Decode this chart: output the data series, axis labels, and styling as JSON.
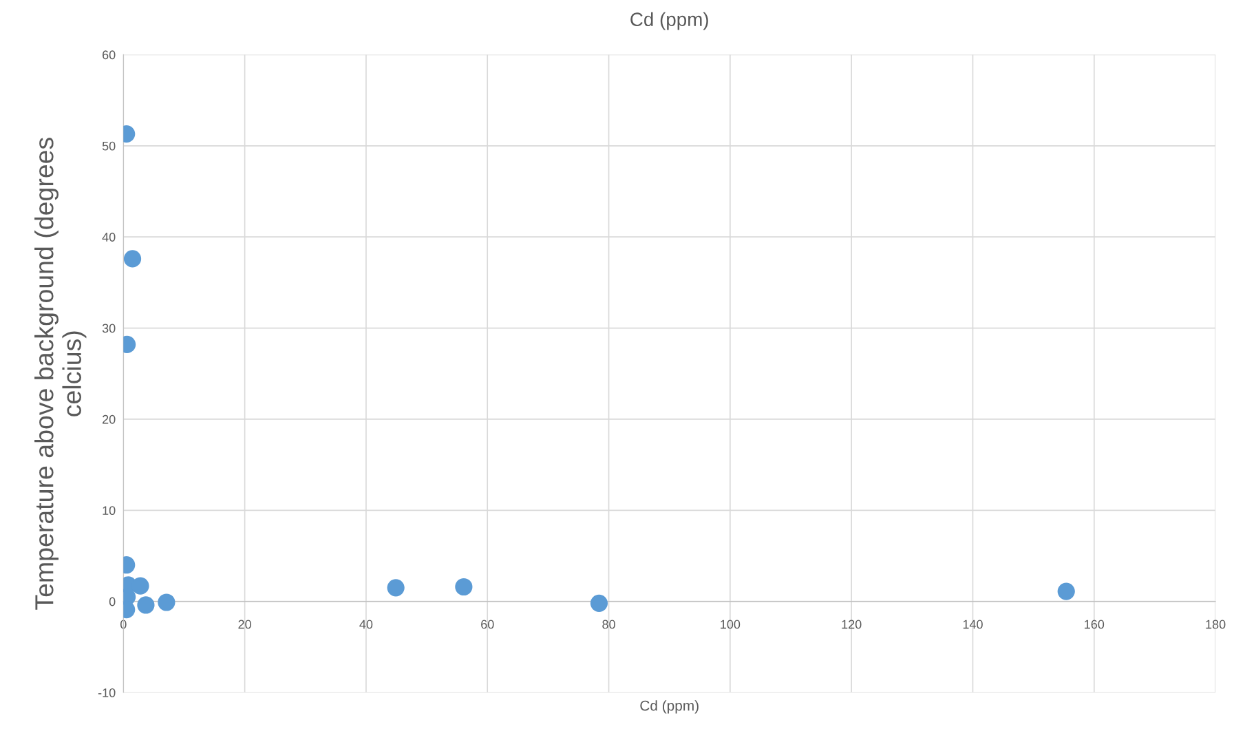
{
  "chart_data": {
    "type": "scatter",
    "title": "Cd (ppm)",
    "xlabel": "Cd (ppm)",
    "ylabel": "Temperature above background (degrees\ncelcius)",
    "x": [
      0.5,
      1.5,
      0.6,
      0.5,
      0.8,
      0.6,
      0.5,
      2.8,
      3.7,
      7.1,
      44.9,
      56.1,
      78.4,
      155.4
    ],
    "series": [
      {
        "color": "#5b9bd5",
        "values": [
          51.3,
          37.6,
          28.2,
          4.0,
          1.8,
          0.5,
          -0.9,
          1.7,
          -0.4,
          -0.1,
          1.5,
          1.6,
          -0.2,
          1.1
        ]
      }
    ],
    "xlim": [
      0,
      180
    ],
    "xticks": [
      0,
      20,
      40,
      60,
      80,
      100,
      120,
      140,
      160,
      180
    ],
    "ylim": [
      -10,
      60
    ],
    "yticks": [
      -10,
      0,
      10,
      20,
      30,
      40,
      50,
      60
    ],
    "grid": true,
    "marker": "circle",
    "legend": false
  }
}
